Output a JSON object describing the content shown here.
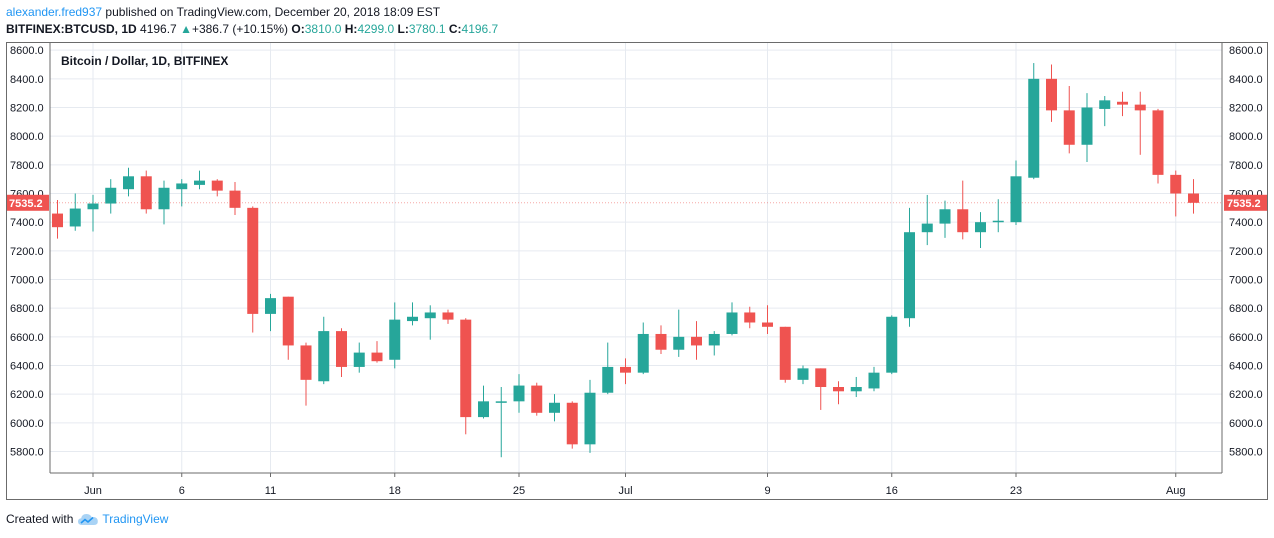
{
  "header": {
    "author": "alexander.fred937",
    "published": "published on TradingView.com, December 20, 2018 18:09 EST",
    "symbol": "BITFINEX:BTCUSD, 1D",
    "last": "4196.7",
    "change_icon": "up-triangle-icon",
    "change_arrow": "▲",
    "change": "+386.7 (+10.15%)",
    "o_label": "O:",
    "o_value": "3810.0",
    "h_label": "H:",
    "h_value": "4299.0",
    "l_label": "L:",
    "l_value": "3780.1",
    "c_label": "C:",
    "c_value": "4196.7"
  },
  "footer": {
    "created_with": "Created with",
    "brand": "TradingView",
    "brand_icon": "tradingview-cloud-icon"
  },
  "colors": {
    "up": "#26a69a",
    "down": "#ef5350",
    "grid": "#e6eaf0",
    "author": "#2196f3"
  },
  "chart_data": {
    "type": "candlestick",
    "title": "Bitcoin / Dollar, 1D, BITFINEX",
    "ylim": [
      5650,
      8650
    ],
    "y_ticks": [
      5800,
      6000,
      6200,
      6400,
      6600,
      6800,
      7000,
      7200,
      7400,
      7600,
      7800,
      8000,
      8200,
      8400,
      8600
    ],
    "y_tick_labels": [
      "5800.0",
      "6000.0",
      "6200.0",
      "6400.0",
      "6600.0",
      "6800.0",
      "7000.0",
      "7200.0",
      "7400.0",
      "7600.0",
      "7800.0",
      "8000.0",
      "8200.0",
      "8400.0",
      "8600.0"
    ],
    "x_ticks": [
      {
        "index": 2,
        "label": "Jun"
      },
      {
        "index": 7,
        "label": "6"
      },
      {
        "index": 12,
        "label": "11"
      },
      {
        "index": 19,
        "label": "18"
      },
      {
        "index": 26,
        "label": "25"
      },
      {
        "index": 32,
        "label": "Jul"
      },
      {
        "index": 40,
        "label": "9"
      },
      {
        "index": 47,
        "label": "16"
      },
      {
        "index": 54,
        "label": "23"
      },
      {
        "index": 63,
        "label": "Aug"
      }
    ],
    "last_price_label": "7535.2",
    "last_price": 7535.2,
    "candles": [
      {
        "o": 7460,
        "h": 7555,
        "l": 7285,
        "c": 7365
      },
      {
        "o": 7370,
        "h": 7600,
        "l": 7340,
        "c": 7495
      },
      {
        "o": 7490,
        "h": 7590,
        "l": 7335,
        "c": 7530
      },
      {
        "o": 7530,
        "h": 7700,
        "l": 7460,
        "c": 7640
      },
      {
        "o": 7630,
        "h": 7780,
        "l": 7580,
        "c": 7720
      },
      {
        "o": 7720,
        "h": 7760,
        "l": 7460,
        "c": 7490
      },
      {
        "o": 7490,
        "h": 7690,
        "l": 7385,
        "c": 7640
      },
      {
        "o": 7630,
        "h": 7700,
        "l": 7510,
        "c": 7670
      },
      {
        "o": 7660,
        "h": 7760,
        "l": 7630,
        "c": 7690
      },
      {
        "o": 7690,
        "h": 7700,
        "l": 7580,
        "c": 7620
      },
      {
        "o": 7620,
        "h": 7680,
        "l": 7450,
        "c": 7500
      },
      {
        "o": 7500,
        "h": 7510,
        "l": 6630,
        "c": 6760
      },
      {
        "o": 6760,
        "h": 6900,
        "l": 6640,
        "c": 6870
      },
      {
        "o": 6880,
        "h": 6880,
        "l": 6440,
        "c": 6540
      },
      {
        "o": 6540,
        "h": 6560,
        "l": 6120,
        "c": 6300
      },
      {
        "o": 6290,
        "h": 6740,
        "l": 6270,
        "c": 6640
      },
      {
        "o": 6640,
        "h": 6660,
        "l": 6320,
        "c": 6390
      },
      {
        "o": 6390,
        "h": 6560,
        "l": 6350,
        "c": 6490
      },
      {
        "o": 6490,
        "h": 6570,
        "l": 6420,
        "c": 6430
      },
      {
        "o": 6440,
        "h": 6840,
        "l": 6380,
        "c": 6720
      },
      {
        "o": 6710,
        "h": 6840,
        "l": 6680,
        "c": 6740
      },
      {
        "o": 6730,
        "h": 6820,
        "l": 6580,
        "c": 6770
      },
      {
        "o": 6770,
        "h": 6790,
        "l": 6690,
        "c": 6720
      },
      {
        "o": 6720,
        "h": 6730,
        "l": 5920,
        "c": 6040
      },
      {
        "o": 6040,
        "h": 6260,
        "l": 6030,
        "c": 6150
      },
      {
        "o": 6150,
        "h": 6250,
        "l": 5760,
        "c": 6150
      },
      {
        "o": 6150,
        "h": 6340,
        "l": 6070,
        "c": 6260
      },
      {
        "o": 6260,
        "h": 6280,
        "l": 6050,
        "c": 6070
      },
      {
        "o": 6070,
        "h": 6200,
        "l": 6010,
        "c": 6140
      },
      {
        "o": 6140,
        "h": 6150,
        "l": 5820,
        "c": 5850
      },
      {
        "o": 5850,
        "h": 6300,
        "l": 5790,
        "c": 6210
      },
      {
        "o": 6210,
        "h": 6560,
        "l": 6200,
        "c": 6390
      },
      {
        "o": 6390,
        "h": 6450,
        "l": 6270,
        "c": 6350
      },
      {
        "o": 6350,
        "h": 6700,
        "l": 6340,
        "c": 6620
      },
      {
        "o": 6620,
        "h": 6680,
        "l": 6480,
        "c": 6510
      },
      {
        "o": 6510,
        "h": 6790,
        "l": 6460,
        "c": 6600
      },
      {
        "o": 6600,
        "h": 6710,
        "l": 6440,
        "c": 6540
      },
      {
        "o": 6540,
        "h": 6640,
        "l": 6470,
        "c": 6620
      },
      {
        "o": 6620,
        "h": 6840,
        "l": 6610,
        "c": 6770
      },
      {
        "o": 6770,
        "h": 6810,
        "l": 6660,
        "c": 6700
      },
      {
        "o": 6700,
        "h": 6820,
        "l": 6620,
        "c": 6670
      },
      {
        "o": 6670,
        "h": 6670,
        "l": 6280,
        "c": 6300
      },
      {
        "o": 6300,
        "h": 6400,
        "l": 6270,
        "c": 6380
      },
      {
        "o": 6380,
        "h": 6380,
        "l": 6090,
        "c": 6250
      },
      {
        "o": 6250,
        "h": 6290,
        "l": 6130,
        "c": 6220
      },
      {
        "o": 6220,
        "h": 6320,
        "l": 6180,
        "c": 6250
      },
      {
        "o": 6240,
        "h": 6390,
        "l": 6220,
        "c": 6350
      },
      {
        "o": 6350,
        "h": 6750,
        "l": 6340,
        "c": 6740
      },
      {
        "o": 6730,
        "h": 7500,
        "l": 6670,
        "c": 7330
      },
      {
        "o": 7330,
        "h": 7590,
        "l": 7240,
        "c": 7390
      },
      {
        "o": 7390,
        "h": 7550,
        "l": 7290,
        "c": 7490
      },
      {
        "o": 7490,
        "h": 7690,
        "l": 7280,
        "c": 7330
      },
      {
        "o": 7330,
        "h": 7470,
        "l": 7220,
        "c": 7400
      },
      {
        "o": 7410,
        "h": 7560,
        "l": 7330,
        "c": 7410
      },
      {
        "o": 7400,
        "h": 7830,
        "l": 7380,
        "c": 7720
      },
      {
        "o": 7710,
        "h": 8510,
        "l": 7700,
        "c": 8400
      },
      {
        "o": 8400,
        "h": 8500,
        "l": 8100,
        "c": 8180
      },
      {
        "o": 8180,
        "h": 8350,
        "l": 7880,
        "c": 7940
      },
      {
        "o": 7940,
        "h": 8300,
        "l": 7820,
        "c": 8200
      },
      {
        "o": 8190,
        "h": 8280,
        "l": 8070,
        "c": 8250
      },
      {
        "o": 8240,
        "h": 8310,
        "l": 8140,
        "c": 8220
      },
      {
        "o": 8220,
        "h": 8310,
        "l": 7870,
        "c": 8180
      },
      {
        "o": 8180,
        "h": 8190,
        "l": 7670,
        "c": 7730
      },
      {
        "o": 7730,
        "h": 7760,
        "l": 7440,
        "c": 7600
      },
      {
        "o": 7600,
        "h": 7700,
        "l": 7460,
        "c": 7535
      }
    ]
  }
}
